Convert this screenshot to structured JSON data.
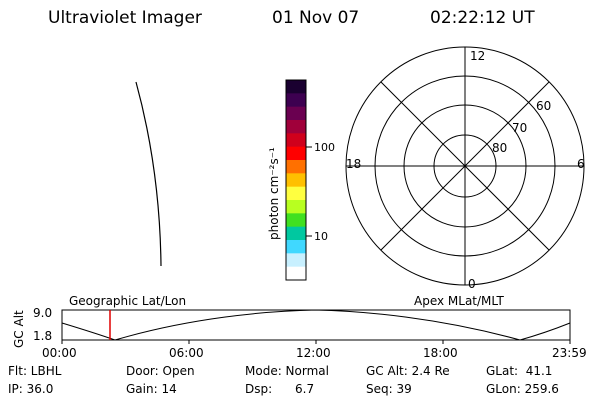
{
  "header": {
    "instrument": "Ultraviolet Imager",
    "date": "01 Nov 07",
    "time": "02:22:12 UT"
  },
  "colorbar": {
    "unit_label": "photon cm⁻²s⁻¹",
    "tick_100": "100",
    "tick_10": "10",
    "colors_top_to_bottom": [
      "#1a0030",
      "#3d0050",
      "#6a0050",
      "#a0003a",
      "#d0001c",
      "#ff0000",
      "#ff7000",
      "#ffc000",
      "#ffff40",
      "#b8ff20",
      "#40e020",
      "#00c8a0",
      "#40d8ff",
      "#c8f0ff",
      "#ffffff"
    ]
  },
  "polar_plot": {
    "mlt_labels": {
      "top": "12",
      "left": "18",
      "right": "6",
      "bottom": "0"
    },
    "lat_labels": [
      "60",
      "70",
      "80"
    ]
  },
  "timeline": {
    "left_label": "Geographic Lat/Lon",
    "right_label": "Apex MLat/MLT",
    "axis_label": "GC Alt",
    "y_max": "9.0",
    "y_min": "1.8",
    "x_ticks": [
      "00:00",
      "06:00",
      "12:00",
      "18:00",
      "23:59"
    ],
    "marker_color": "#e00000"
  },
  "status": {
    "flt": "Flt: LBHL",
    "door": "Door: Open",
    "mode": "Mode: Normal",
    "gc_alt": "GC Alt: 2.4 Re",
    "glat": "GLat:  41.1",
    "ip": "IP: 36.0",
    "gain": "Gain: 14",
    "dsp": "Dsp:      6.7",
    "seq": "Seq: 39",
    "glon": "GLon: 259.6"
  }
}
